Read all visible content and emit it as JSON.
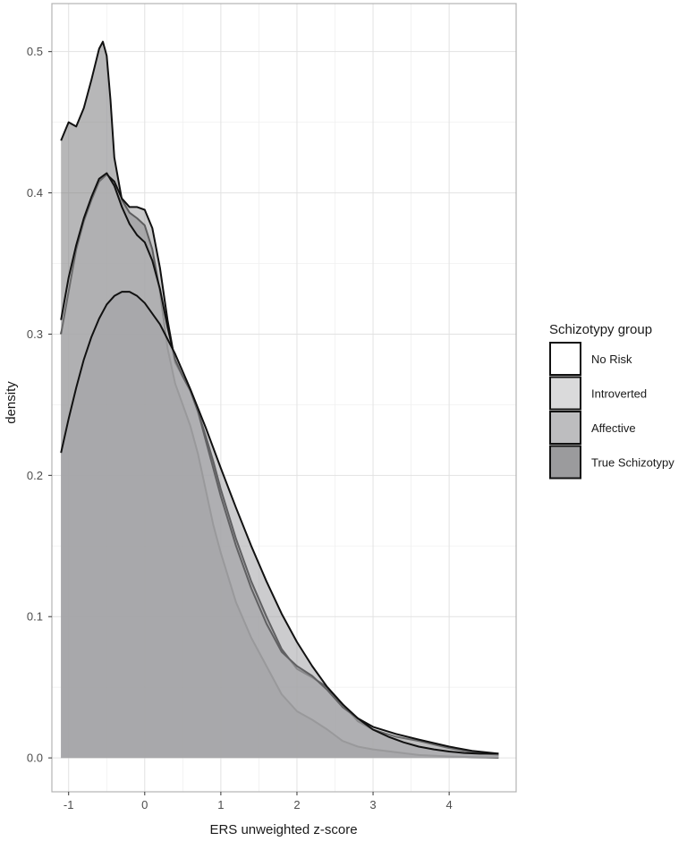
{
  "chart_data": {
    "type": "area",
    "xlabel": "ERS unweighted z-score",
    "ylabel": "density",
    "xlim": [
      -1.22,
      4.88
    ],
    "ylim": [
      -0.024,
      0.534
    ],
    "x_ticks": [
      -1,
      0,
      1,
      2,
      3,
      4
    ],
    "y_ticks": [
      0.0,
      0.1,
      0.2,
      0.3,
      0.4,
      0.5
    ],
    "x_tick_labels": [
      "-1",
      "0",
      "1",
      "2",
      "3",
      "4"
    ],
    "y_tick_labels": [
      "0.0",
      "0.1",
      "0.2",
      "0.3",
      "0.4",
      "0.5"
    ],
    "grid": true,
    "legend": {
      "title": "Schizotypy group",
      "position": "right",
      "items": [
        {
          "label": "No Risk",
          "fill": "#ffffff"
        },
        {
          "label": "Introverted",
          "fill": "#dadadb"
        },
        {
          "label": "Affective",
          "fill": "#bdbdbf"
        },
        {
          "label": "True Schizotypy",
          "fill": "#9b9b9d"
        }
      ]
    },
    "series": [
      {
        "name": "No Risk",
        "fill": "#7b7b7d",
        "x": [
          -1.1,
          -1.0,
          -0.9,
          -0.8,
          -0.7,
          -0.6,
          -0.55,
          -0.5,
          -0.45,
          -0.4,
          -0.3,
          -0.2,
          -0.1,
          0.0,
          0.1,
          0.2,
          0.3,
          0.4,
          0.5,
          0.6,
          0.7,
          0.8,
          0.9,
          1.0,
          1.2,
          1.4,
          1.6,
          1.8,
          2.0,
          2.2,
          2.4,
          2.6,
          2.8,
          3.0,
          3.3,
          3.6,
          4.0,
          4.3,
          4.65
        ],
        "y": [
          0.437,
          0.45,
          0.447,
          0.46,
          0.48,
          0.502,
          0.507,
          0.497,
          0.466,
          0.425,
          0.395,
          0.386,
          0.382,
          0.377,
          0.36,
          0.33,
          0.29,
          0.265,
          0.25,
          0.235,
          0.215,
          0.19,
          0.165,
          0.145,
          0.11,
          0.085,
          0.065,
          0.045,
          0.033,
          0.027,
          0.02,
          0.012,
          0.008,
          0.006,
          0.004,
          0.002,
          0.001,
          0.0005,
          0.0002
        ]
      },
      {
        "name": "Introverted",
        "fill": "#9d9d9f",
        "x": [
          -1.1,
          -1.0,
          -0.9,
          -0.8,
          -0.7,
          -0.6,
          -0.5,
          -0.4,
          -0.3,
          -0.2,
          -0.1,
          0.0,
          0.1,
          0.2,
          0.3,
          0.4,
          0.5,
          0.6,
          0.7,
          0.8,
          0.9,
          1.0,
          1.2,
          1.4,
          1.6,
          1.8,
          2.0,
          2.2,
          2.4,
          2.6,
          2.8,
          3.0,
          3.3,
          3.6,
          4.0,
          4.3,
          4.65
        ],
        "y": [
          0.3,
          0.33,
          0.36,
          0.38,
          0.395,
          0.408,
          0.413,
          0.408,
          0.396,
          0.39,
          0.39,
          0.388,
          0.375,
          0.347,
          0.31,
          0.28,
          0.27,
          0.26,
          0.245,
          0.228,
          0.21,
          0.19,
          0.155,
          0.125,
          0.1,
          0.077,
          0.063,
          0.057,
          0.05,
          0.038,
          0.026,
          0.02,
          0.015,
          0.012,
          0.007,
          0.004,
          0.002
        ]
      },
      {
        "name": "Affective",
        "fill": "#b6b6b8",
        "x": [
          -1.1,
          -1.0,
          -0.9,
          -0.8,
          -0.7,
          -0.6,
          -0.5,
          -0.4,
          -0.3,
          -0.2,
          -0.1,
          0.0,
          0.1,
          0.2,
          0.3,
          0.4,
          0.5,
          0.6,
          0.7,
          0.8,
          0.9,
          1.0,
          1.2,
          1.4,
          1.6,
          1.8,
          2.0,
          2.2,
          2.4,
          2.6,
          2.8,
          3.0,
          3.3,
          3.6,
          4.0,
          4.3,
          4.65
        ],
        "y": [
          0.31,
          0.34,
          0.363,
          0.382,
          0.397,
          0.41,
          0.414,
          0.405,
          0.39,
          0.378,
          0.37,
          0.365,
          0.352,
          0.332,
          0.305,
          0.282,
          0.27,
          0.26,
          0.245,
          0.225,
          0.205,
          0.185,
          0.15,
          0.12,
          0.095,
          0.075,
          0.065,
          0.058,
          0.048,
          0.036,
          0.028,
          0.022,
          0.017,
          0.013,
          0.008,
          0.005,
          0.003
        ]
      },
      {
        "name": "True Schizotypy",
        "fill": "#a3a3a5",
        "x": [
          -1.1,
          -1.0,
          -0.9,
          -0.8,
          -0.7,
          -0.6,
          -0.5,
          -0.4,
          -0.3,
          -0.2,
          -0.1,
          0.0,
          0.2,
          0.4,
          0.6,
          0.8,
          1.0,
          1.2,
          1.4,
          1.6,
          1.8,
          2.0,
          2.2,
          2.4,
          2.6,
          2.8,
          3.0,
          3.2,
          3.4,
          3.6,
          3.8,
          4.0,
          4.2,
          4.4,
          4.65
        ],
        "y": [
          0.216,
          0.24,
          0.262,
          0.282,
          0.298,
          0.311,
          0.321,
          0.327,
          0.33,
          0.33,
          0.327,
          0.322,
          0.307,
          0.286,
          0.261,
          0.234,
          0.205,
          0.177,
          0.15,
          0.125,
          0.102,
          0.082,
          0.065,
          0.05,
          0.038,
          0.028,
          0.02,
          0.015,
          0.011,
          0.008,
          0.006,
          0.0045,
          0.0035,
          0.003,
          0.003
        ]
      }
    ]
  }
}
